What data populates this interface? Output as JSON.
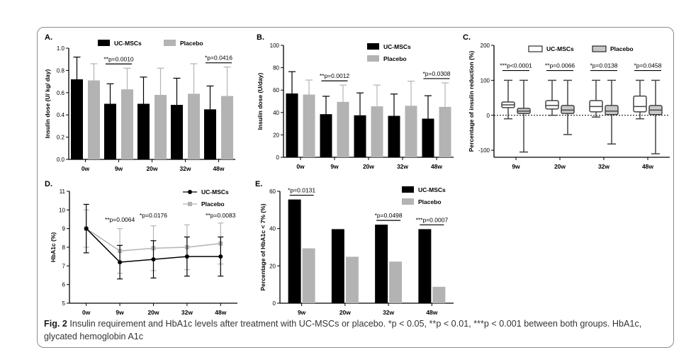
{
  "caption": {
    "figure_label": "Fig. 2",
    "text": "Insulin requirement and HbA1c levels after treatment with UC-MSCs or placebo. *p < 0.05, **p < 0.01, ***p < 0.001 between both groups. HbA1c, glycated hemoglobin A1c"
  },
  "colors": {
    "uc": "#000000",
    "placebo": "#b3b3b3",
    "placebo_box": "#c8c8c8"
  },
  "chart_data": [
    {
      "panel": "A.",
      "type": "bar",
      "ylabel": "Insulin dose (U/ kg/ day)",
      "ylim": [
        0,
        1.0
      ],
      "yticks": [
        "0.0",
        "0.2",
        "0.4",
        "0.6",
        "0.8",
        "1.0"
      ],
      "categories": [
        "0w",
        "9w",
        "20w",
        "32w",
        "48w"
      ],
      "legend": [
        "UC-MSCs",
        "Placebo"
      ],
      "series": [
        {
          "name": "UC-MSCs",
          "values": [
            0.72,
            0.5,
            0.5,
            0.49,
            0.45
          ],
          "err": [
            0.2,
            0.18,
            0.24,
            0.24,
            0.21
          ]
        },
        {
          "name": "Placebo",
          "values": [
            0.71,
            0.63,
            0.58,
            0.59,
            0.57
          ],
          "err": [
            0.15,
            0.19,
            0.24,
            0.27,
            0.26
          ]
        }
      ],
      "annotations": [
        {
          "category": "9w",
          "text": "**p=0.0010"
        },
        {
          "category": "48w",
          "text": "*p=0.0416"
        }
      ]
    },
    {
      "panel": "B.",
      "type": "bar",
      "ylabel": "Insulin dose (U/day)",
      "ylim": [
        0,
        100
      ],
      "yticks": [
        "0",
        "20",
        "40",
        "60",
        "80",
        "100"
      ],
      "categories": [
        "0w",
        "9w",
        "20w",
        "32w",
        "48w"
      ],
      "legend": [
        "UC-MSCs",
        "Placebo"
      ],
      "series": [
        {
          "name": "UC-MSCs",
          "values": [
            57,
            38.5,
            37.5,
            37,
            34.5
          ],
          "err": [
            19.5,
            16,
            20,
            19.5,
            20.5
          ]
        },
        {
          "name": "Placebo",
          "values": [
            56,
            49.5,
            45.5,
            46,
            45
          ],
          "err": [
            13,
            15,
            19,
            22,
            21.5
          ]
        }
      ],
      "annotations": [
        {
          "category": "9w",
          "text": "**p=0.0012"
        },
        {
          "category": "48w",
          "text": "*p=0.0308"
        }
      ]
    },
    {
      "panel": "C.",
      "type": "box",
      "ylabel": "Percentage of insulin reduction (%)",
      "ylim": [
        -120,
        200
      ],
      "yticks": [
        "-100",
        "0",
        "100",
        "200"
      ],
      "categories": [
        "9w",
        "20w",
        "32w",
        "48w"
      ],
      "legend": [
        "UC-MSCs",
        "Placebo"
      ],
      "series": [
        {
          "name": "UC-MSCs",
          "boxes": [
            {
              "min": -10,
              "q1": 22,
              "median": 30,
              "q3": 38,
              "max": 100
            },
            {
              "min": 0,
              "q1": 18,
              "median": 28,
              "q3": 42,
              "max": 100
            },
            {
              "min": -5,
              "q1": 10,
              "median": 25,
              "q3": 42,
              "max": 100
            },
            {
              "min": -10,
              "q1": 10,
              "median": 25,
              "q3": 55,
              "max": 100
            }
          ]
        },
        {
          "name": "Placebo",
          "boxes": [
            {
              "min": -105,
              "q1": 5,
              "median": 12,
              "q3": 20,
              "max": 100
            },
            {
              "min": -55,
              "q1": 5,
              "median": 15,
              "q3": 28,
              "max": 100
            },
            {
              "min": -82,
              "q1": 2,
              "median": 12,
              "q3": 28,
              "max": 100
            },
            {
              "min": -110,
              "q1": 2,
              "median": 15,
              "q3": 28,
              "max": 100
            }
          ]
        }
      ],
      "annotations": [
        {
          "category": "9w",
          "text": "***p<0.0001"
        },
        {
          "category": "20w",
          "text": "**p=0.0066"
        },
        {
          "category": "32w",
          "text": "*p=0.0138"
        },
        {
          "category": "48w",
          "text": "*p=0.0458"
        }
      ]
    },
    {
      "panel": "D.",
      "type": "line",
      "ylabel": "HbA1c (%)",
      "ylim": [
        5,
        11
      ],
      "yticks": [
        "5",
        "6",
        "7",
        "8",
        "9",
        "10",
        "11"
      ],
      "categories": [
        "0w",
        "9w",
        "20w",
        "32w",
        "48w"
      ],
      "legend": [
        "UC-MSCs",
        "Placebo"
      ],
      "series": [
        {
          "name": "UC-MSCs",
          "values": [
            9.0,
            7.2,
            7.35,
            7.5,
            7.5
          ],
          "err": [
            1.3,
            0.9,
            1.0,
            1.05,
            1.05
          ]
        },
        {
          "name": "Placebo",
          "values": [
            9.0,
            7.8,
            7.95,
            8.0,
            8.2
          ],
          "err": [
            1.0,
            1.2,
            1.2,
            1.2,
            1.1
          ]
        }
      ],
      "annotations": [
        {
          "category": "9w",
          "text": "**p=0.0064"
        },
        {
          "category": "20w",
          "text": "*p=0.0176"
        },
        {
          "category": "48w",
          "text": "**p=0.0083"
        }
      ]
    },
    {
      "panel": "E.",
      "type": "bar",
      "ylabel": "Percentage of HbA1c < 7% (%)",
      "ylim": [
        0,
        60
      ],
      "yticks": [
        "0",
        "20",
        "40",
        "60"
      ],
      "categories": [
        "9w",
        "20w",
        "32w",
        "48w"
      ],
      "legend": [
        "UC-MSCs",
        "Placebo"
      ],
      "series": [
        {
          "name": "UC-MSCs",
          "values": [
            55.6,
            39.7,
            42.1,
            39.7
          ]
        },
        {
          "name": "Placebo",
          "values": [
            29.4,
            24.9,
            22.3,
            8.8
          ]
        }
      ],
      "annotations": [
        {
          "category": "9w",
          "text": "*p=0.0131"
        },
        {
          "category": "32w",
          "text": "*p=0.0498"
        },
        {
          "category": "48w",
          "text": "***p=0.0007"
        }
      ]
    }
  ]
}
